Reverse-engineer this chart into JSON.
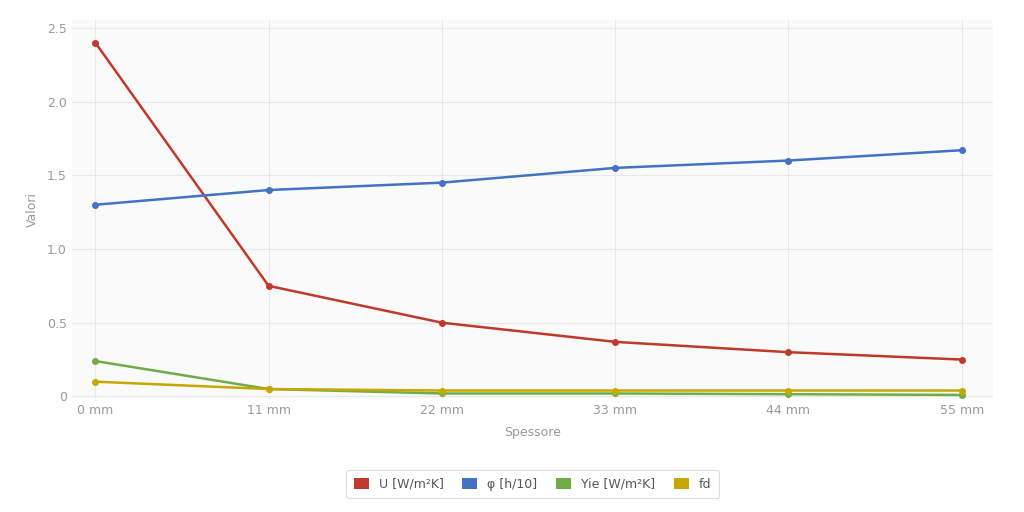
{
  "x_values": [
    0,
    11,
    22,
    33,
    44,
    55
  ],
  "x_labels": [
    "0 mm",
    "11 mm",
    "22 mm",
    "33 mm",
    "44 mm",
    "55 mm"
  ],
  "U": [
    2.4,
    0.75,
    0.5,
    0.37,
    0.3,
    0.25
  ],
  "phi": [
    1.3,
    1.4,
    1.45,
    1.55,
    1.6,
    1.67
  ],
  "Yie": [
    0.24,
    0.05,
    0.02,
    0.02,
    0.015,
    0.01
  ],
  "fd": [
    0.1,
    0.05,
    0.04,
    0.04,
    0.04,
    0.04
  ],
  "U_color": "#c0392b",
  "phi_color": "#4472c4",
  "Yie_color": "#70ad47",
  "fd_color": "#c8a700",
  "xlabel": "Spessore",
  "ylabel": "Valori",
  "ylim_min": -0.02,
  "ylim_max": 2.55,
  "yticks": [
    0.0,
    0.5,
    1.0,
    1.5,
    2.0,
    2.5
  ],
  "legend_labels": [
    "U [W/m²K]",
    "φ [h/10]",
    "Yie [W/m²K]",
    "fd"
  ],
  "background_color": "#ffffff",
  "plot_bg_color": "#fafafa",
  "grid_color": "#e8e8e8",
  "marker_size": 4,
  "line_width": 1.8
}
